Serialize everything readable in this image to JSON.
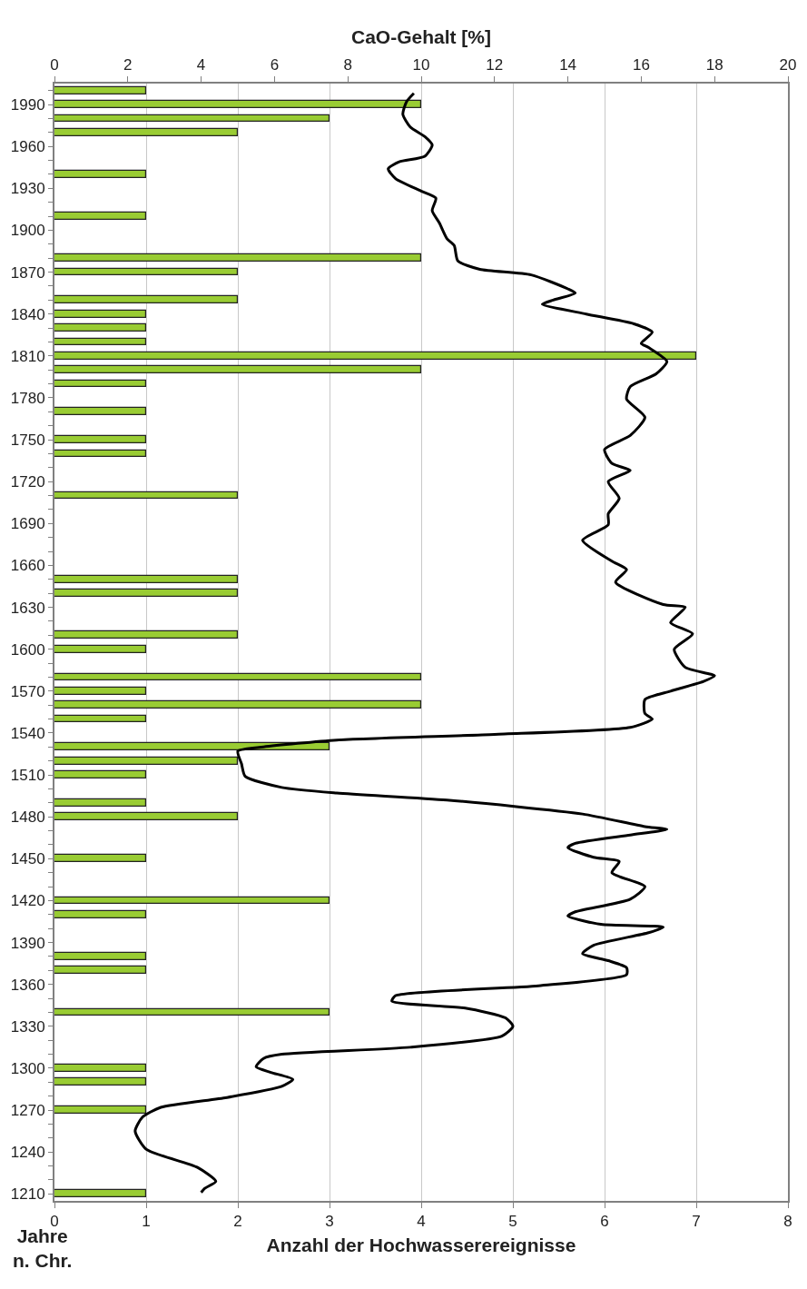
{
  "chart_data": {
    "type": "bar",
    "orientation": "horizontal",
    "x2label": "CaO-Gehalt [%]",
    "xlabel": "Anzahl der Hochwasserereignisse",
    "ylabel": "Jahre n. Chr.",
    "x": [
      2000,
      1990,
      1980,
      1970,
      1940,
      1910,
      1880,
      1870,
      1850,
      1840,
      1830,
      1820,
      1810,
      1800,
      1790,
      1770,
      1750,
      1740,
      1710,
      1650,
      1640,
      1610,
      1600,
      1580,
      1570,
      1560,
      1550,
      1530,
      1520,
      1510,
      1490,
      1480,
      1450,
      1420,
      1410,
      1380,
      1370,
      1340,
      1300,
      1290,
      1270,
      1210
    ],
    "series": [
      {
        "color": "#99cc33",
        "values": [
          1,
          4,
          3,
          2,
          1,
          1,
          4,
          2,
          2,
          1,
          1,
          1,
          7,
          4,
          1,
          1,
          1,
          1,
          2,
          2,
          2,
          2,
          1,
          4,
          1,
          4,
          1,
          3,
          2,
          1,
          1,
          2,
          1,
          3,
          1,
          1,
          1,
          3,
          1,
          1,
          1,
          1
        ]
      },
      {
        "type": "line",
        "axis": "x2",
        "color": "#000000",
        "x": [
          1998,
          1992,
          1983,
          1974,
          1967,
          1961,
          1953,
          1949,
          1944,
          1937,
          1928,
          1923,
          1914,
          1905,
          1894,
          1889,
          1878,
          1872,
          1868,
          1858,
          1855,
          1850,
          1847,
          1840,
          1833,
          1827,
          1819,
          1816,
          1806,
          1797,
          1788,
          1779,
          1766,
          1753,
          1743,
          1733,
          1728,
          1720,
          1708,
          1697,
          1689,
          1678,
          1663,
          1657,
          1648,
          1632,
          1630,
          1619,
          1611,
          1600,
          1587,
          1581,
          1577,
          1570,
          1564,
          1554,
          1550,
          1544,
          1539,
          1535,
          1530,
          1527,
          1518,
          1509,
          1501,
          1497,
          1492,
          1482,
          1473,
          1471,
          1467,
          1461,
          1458,
          1451,
          1448,
          1440,
          1430,
          1421,
          1412,
          1409,
          1403,
          1401,
          1397,
          1388,
          1382,
          1377,
          1372,
          1367,
          1359,
          1352,
          1348,
          1343,
          1336,
          1330,
          1323,
          1315,
          1310,
          1307,
          1301,
          1297,
          1292,
          1287,
          1279,
          1272,
          1265,
          1255,
          1242,
          1229,
          1219,
          1214,
          1211
        ],
        "values": [
          9.8,
          9.6,
          9.5,
          9.7,
          10.1,
          10.3,
          10.1,
          9.4,
          9.1,
          9.3,
          10.0,
          10.4,
          10.3,
          10.5,
          10.7,
          10.9,
          11.0,
          11.6,
          13.0,
          14.0,
          14.2,
          13.6,
          13.3,
          14.5,
          15.8,
          16.3,
          16.0,
          16.2,
          16.7,
          16.4,
          15.7,
          15.6,
          16.1,
          15.7,
          15.0,
          15.2,
          15.7,
          15.1,
          15.4,
          15.1,
          15.1,
          14.4,
          15.2,
          15.6,
          15.3,
          16.6,
          17.2,
          16.8,
          17.4,
          16.9,
          17.2,
          18.0,
          17.7,
          16.8,
          16.1,
          16.1,
          16.3,
          15.7,
          12.0,
          7.7,
          5.7,
          5.0,
          5.1,
          5.2,
          6.2,
          7.7,
          10.7,
          14.4,
          16.1,
          16.7,
          15.7,
          14.2,
          14.0,
          14.7,
          15.4,
          15.2,
          16.1,
          15.7,
          14.2,
          14.0,
          14.9,
          16.6,
          16.2,
          14.7,
          14.4,
          15.1,
          15.6,
          15.6,
          13.2,
          9.3,
          9.2,
          11.2,
          12.3,
          12.5,
          12.2,
          9.7,
          6.2,
          5.7,
          5.5,
          5.9,
          6.5,
          6.2,
          4.7,
          2.9,
          2.4,
          2.2,
          2.5,
          3.9,
          4.4,
          4.1,
          4.0
        ]
      }
    ],
    "xlim": [
      0,
      8
    ],
    "xticks": [
      0,
      1,
      2,
      3,
      4,
      5,
      6,
      7,
      8
    ],
    "x2lim": [
      0,
      20
    ],
    "x2ticks": [
      0,
      2,
      4,
      6,
      8,
      10,
      12,
      14,
      16,
      18,
      20
    ],
    "ylim": [
      1205,
      2005
    ],
    "yticks": [
      1210,
      {
        "value": 1220,
        "label": null
      },
      {
        "value": 1230,
        "label": null
      },
      1240,
      {
        "value": 1250,
        "label": null
      },
      {
        "value": 1260,
        "label": null
      },
      1270,
      {
        "value": 1280,
        "label": null
      },
      {
        "value": 1290,
        "label": null
      },
      1300,
      {
        "value": 1310,
        "label": null
      },
      {
        "value": 1320,
        "label": null
      },
      1330,
      {
        "value": 1340,
        "label": null
      },
      {
        "value": 1350,
        "label": null
      },
      1360,
      {
        "value": 1370,
        "label": null
      },
      {
        "value": 1380,
        "label": null
      },
      1390,
      {
        "value": 1400,
        "label": null
      },
      {
        "value": 1410,
        "label": null
      },
      1420,
      {
        "value": 1430,
        "label": null
      },
      {
        "value": 1440,
        "label": null
      },
      1450,
      {
        "value": 1460,
        "label": null
      },
      {
        "value": 1470,
        "label": null
      },
      1480,
      {
        "value": 1490,
        "label": null
      },
      {
        "value": 1500,
        "label": null
      },
      1510,
      {
        "value": 1520,
        "label": null
      },
      {
        "value": 1530,
        "label": null
      },
      1540,
      {
        "value": 1550,
        "label": null
      },
      {
        "value": 1560,
        "label": null
      },
      1570,
      {
        "value": 1580,
        "label": null
      },
      {
        "value": 1590,
        "label": null
      },
      1600,
      {
        "value": 1610,
        "label": null
      },
      {
        "value": 1620,
        "label": null
      },
      1630,
      {
        "value": 1640,
        "label": null
      },
      {
        "value": 1650,
        "label": null
      },
      1660,
      {
        "value": 1670,
        "label": null
      },
      {
        "value": 1680,
        "label": null
      },
      1690,
      {
        "value": 1700,
        "label": null
      },
      {
        "value": 1710,
        "label": null
      },
      1720,
      {
        "value": 1730,
        "label": null
      },
      {
        "value": 1740,
        "label": null
      },
      1750,
      {
        "value": 1760,
        "label": null
      },
      {
        "value": 1770,
        "label": null
      },
      1780,
      {
        "value": 1790,
        "label": null
      },
      {
        "value": 1800,
        "label": null
      },
      1810,
      {
        "value": 1820,
        "label": null
      },
      {
        "value": 1830,
        "label": null
      },
      1840,
      {
        "value": 1850,
        "label": null
      },
      {
        "value": 1860,
        "label": null
      },
      1870,
      {
        "value": 1880,
        "label": null
      },
      {
        "value": 1890,
        "label": null
      },
      1900,
      {
        "value": 1910,
        "label": null
      },
      {
        "value": 1920,
        "label": null
      },
      1930,
      {
        "value": 1940,
        "label": null
      },
      {
        "value": 1950,
        "label": null
      },
      1960,
      {
        "value": 1970,
        "label": null
      },
      {
        "value": 1980,
        "label": null
      },
      1990,
      {
        "value": 2000,
        "label": null
      }
    ],
    "grid": "x"
  }
}
